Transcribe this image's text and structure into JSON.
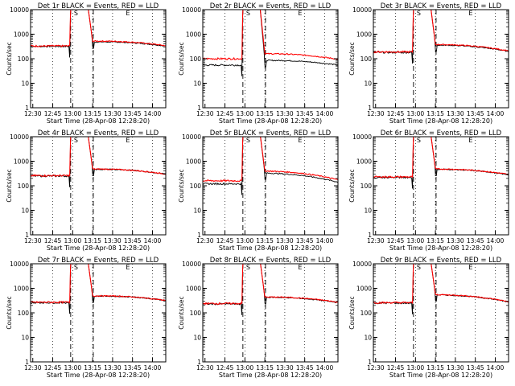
{
  "chart_data": {
    "type": "line",
    "start_time_label": "Start Time (28-Apr-08 12:28:20)",
    "ylabel": "Counts/sec",
    "x_ticks": [
      "12:30",
      "12:45",
      "13:00",
      "13:15",
      "13:30",
      "13:45",
      "14:00"
    ],
    "y_ticks": [
      "1",
      "10",
      "100",
      "1000",
      "10000"
    ],
    "ylim": [
      1,
      10000
    ],
    "y_scale": "log",
    "xlim": [
      "12:28:20",
      "14:10"
    ],
    "marker_labels": [
      "S",
      "E"
    ],
    "series_colors": {
      "events": "#000000",
      "lld": "#ff0000"
    },
    "panels": [
      {
        "title": "Det 1r BLACK = Events, RED = LLD",
        "events_base": 320,
        "lld_base": 330,
        "events_post": 480,
        "lld_post": 520,
        "events_tail": 330,
        "lld_tail": 340
      },
      {
        "title": "Det 2r BLACK = Events, RED = LLD",
        "events_base": 55,
        "lld_base": 100,
        "events_post": 85,
        "lld_post": 160,
        "events_tail": 55,
        "lld_tail": 95
      },
      {
        "title": "Det 3r BLACK = Events, RED = LLD",
        "events_base": 180,
        "lld_base": 190,
        "events_post": 360,
        "lld_post": 380,
        "events_tail": 200,
        "lld_tail": 210
      },
      {
        "title": "Det 4r BLACK = Events, RED = LLD",
        "events_base": 250,
        "lld_base": 260,
        "events_post": 470,
        "lld_post": 480,
        "events_tail": 300,
        "lld_tail": 300
      },
      {
        "title": "Det 5r BLACK = Events, RED = LLD",
        "events_base": 120,
        "lld_base": 160,
        "events_post": 330,
        "lld_post": 400,
        "events_tail": 140,
        "lld_tail": 175
      },
      {
        "title": "Det 6r BLACK = Events, RED = LLD",
        "events_base": 220,
        "lld_base": 230,
        "events_post": 470,
        "lld_post": 480,
        "events_tail": 280,
        "lld_tail": 290
      },
      {
        "title": "Det 7r BLACK = Events, RED = LLD",
        "events_base": 260,
        "lld_base": 270,
        "events_post": 480,
        "lld_post": 490,
        "events_tail": 320,
        "lld_tail": 320
      },
      {
        "title": "Det 8r BLACK = Events, RED = LLD",
        "events_base": 230,
        "lld_base": 240,
        "events_post": 430,
        "lld_post": 440,
        "events_tail": 260,
        "lld_tail": 270
      },
      {
        "title": "Det 9r BLACK = Events, RED = LLD",
        "events_base": 250,
        "lld_base": 260,
        "events_post": 540,
        "lld_post": 550,
        "events_tail": 280,
        "lld_tail": 285
      }
    ]
  }
}
